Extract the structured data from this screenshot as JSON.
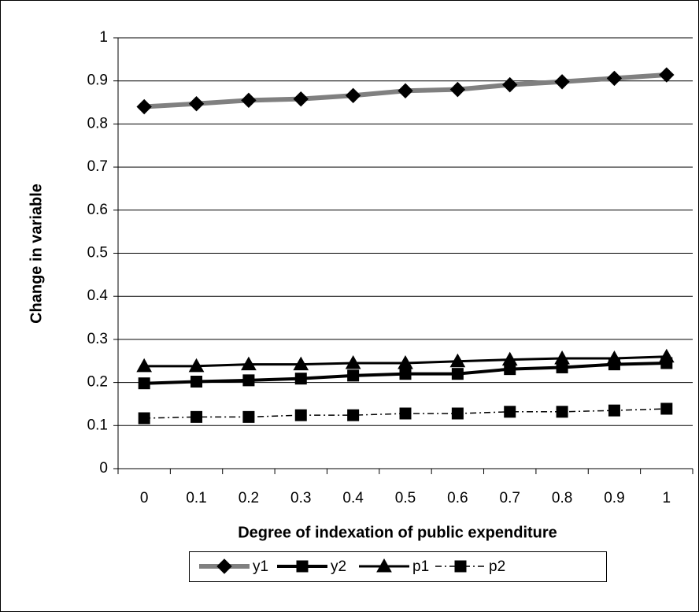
{
  "chart_data": {
    "type": "line",
    "x_label": "Degree of indexation of public expenditure",
    "y_label": "Change in variable",
    "categories": [
      "0",
      "0.1",
      "0.2",
      "0.3",
      "0.4",
      "0.5",
      "0.6",
      "0.7",
      "0.8",
      "0.9",
      "1"
    ],
    "series": [
      {
        "name": "y1",
        "color": "#808080",
        "marker": "diamond",
        "width": 6,
        "dash": "solid",
        "values": [
          0.84,
          0.847,
          0.855,
          0.858,
          0.866,
          0.877,
          0.88,
          0.891,
          0.898,
          0.906,
          0.914
        ]
      },
      {
        "name": "y2",
        "color": "#000000",
        "marker": "square",
        "width": 4,
        "dash": "solid",
        "values": [
          0.198,
          0.202,
          0.205,
          0.209,
          0.216,
          0.22,
          0.22,
          0.231,
          0.235,
          0.242,
          0.245
        ]
      },
      {
        "name": "p1",
        "color": "#000000",
        "marker": "triangle",
        "width": 3,
        "dash": "solid",
        "values": [
          0.238,
          0.238,
          0.242,
          0.242,
          0.245,
          0.245,
          0.249,
          0.253,
          0.256,
          0.256,
          0.26
        ]
      },
      {
        "name": "p2",
        "color": "#000000",
        "marker": "square",
        "width": 1.5,
        "dash": "dash-dot",
        "values": [
          0.117,
          0.12,
          0.12,
          0.124,
          0.124,
          0.128,
          0.128,
          0.132,
          0.132,
          0.135,
          0.139
        ]
      }
    ],
    "ylim": [
      0,
      1
    ],
    "yticks": [
      0,
      0.1,
      0.2,
      0.3,
      0.4,
      0.5,
      0.6,
      0.7,
      0.8,
      0.9,
      1
    ],
    "grid": true,
    "legend": "bottom"
  }
}
